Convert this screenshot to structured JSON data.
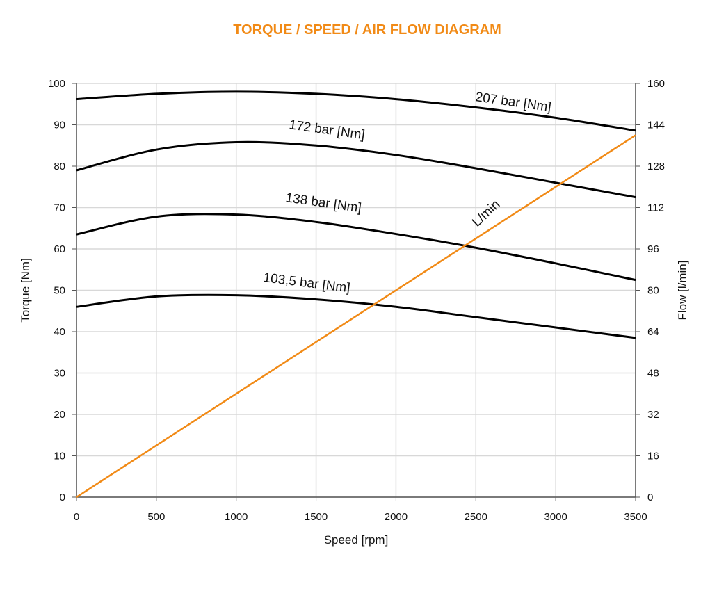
{
  "chart_data": {
    "type": "line",
    "title": "TORQUE / SPEED / AIR FLOW DIAGRAM",
    "xlabel": "Speed [rpm]",
    "ylabel": "Torque [Nm]",
    "y2label": "Flow [l/min]",
    "xlim": [
      0,
      3500
    ],
    "ylim": [
      0,
      100
    ],
    "y2lim": [
      0,
      160
    ],
    "grid": true,
    "x_ticks": [
      0,
      500,
      1000,
      1500,
      2000,
      2500,
      3000,
      3500
    ],
    "y_ticks": [
      0,
      10,
      20,
      30,
      40,
      50,
      60,
      70,
      80,
      90,
      100
    ],
    "y2_ticks": [
      0,
      16,
      32,
      48,
      64,
      80,
      96,
      112,
      128,
      144,
      160
    ],
    "x": [
      0,
      500,
      1000,
      1500,
      2000,
      2500,
      3000,
      3500
    ],
    "series": [
      {
        "name": "207 bar [Nm]",
        "axis": "left",
        "color": "#000000",
        "values": [
          96.2,
          97.5,
          98,
          97.5,
          96.2,
          94.2,
          91.7,
          88.6
        ]
      },
      {
        "name": "172 bar [Nm]",
        "axis": "left",
        "color": "#000000",
        "values": [
          79,
          84,
          85.8,
          85,
          82.7,
          79.5,
          76,
          72.5
        ]
      },
      {
        "name": "138 bar [Nm]",
        "axis": "left",
        "color": "#000000",
        "values": [
          63.5,
          67.8,
          68.3,
          66.5,
          63.6,
          60.3,
          56.5,
          52.5
        ]
      },
      {
        "name": "103,5 bar [Nm]",
        "axis": "left",
        "color": "#000000",
        "values": [
          46,
          48.5,
          48.8,
          47.8,
          46,
          43.5,
          41,
          38.5
        ]
      },
      {
        "name": "L/min",
        "axis": "right",
        "color": "#f18a16",
        "values": [
          0,
          20,
          40,
          60,
          80,
          100,
          120,
          140
        ]
      }
    ]
  }
}
